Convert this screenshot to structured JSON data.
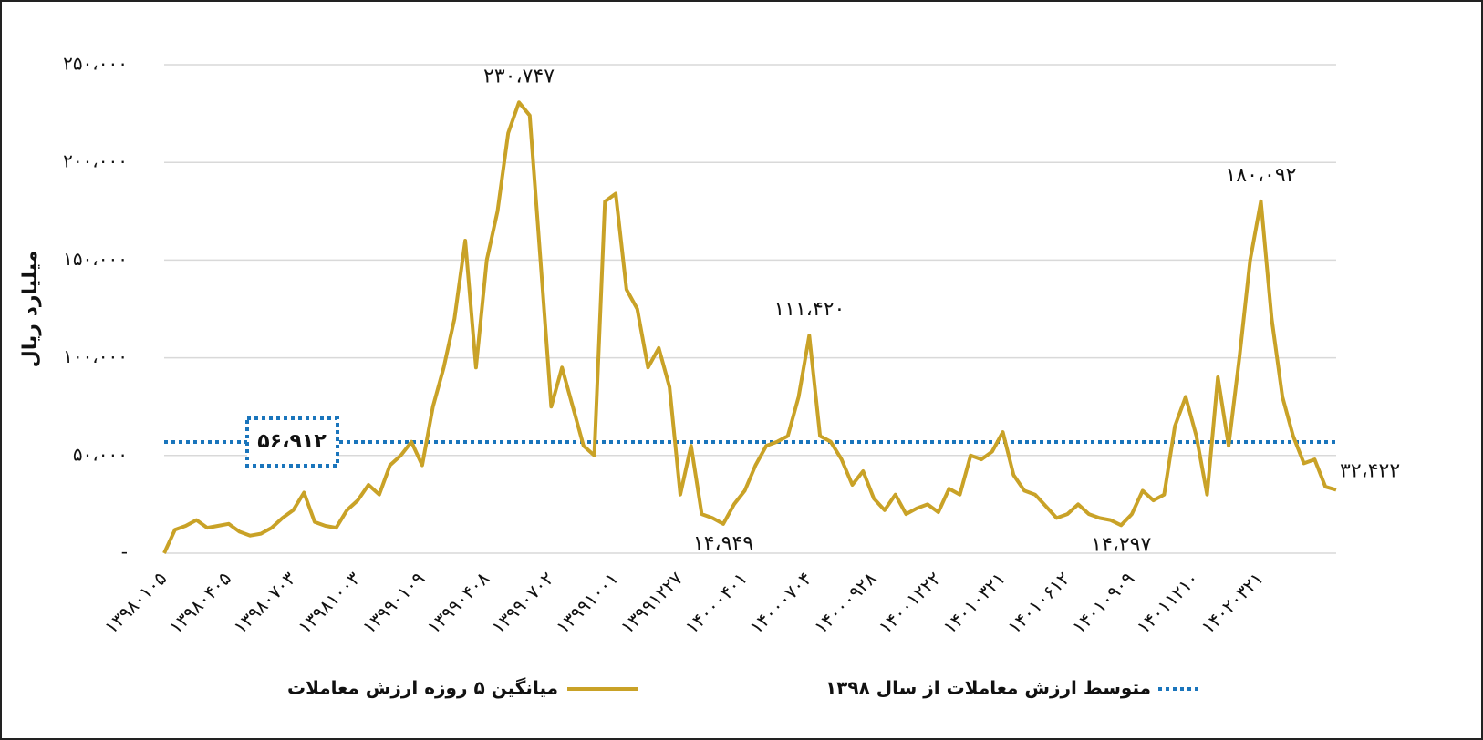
{
  "chart_data": {
    "type": "line",
    "y_label": "میلیارد ریال",
    "categories": [
      "۱۳۹۸۰۱۰۵",
      null,
      null,
      null,
      null,
      null,
      "۱۳۹۸۰۴۰۵",
      null,
      null,
      null,
      null,
      null,
      "۱۳۹۸۰۷۰۳",
      null,
      null,
      null,
      null,
      null,
      "۱۳۹۸۱۰۰۳",
      null,
      null,
      null,
      null,
      null,
      "۱۳۹۹۰۱۰۹",
      null,
      null,
      null,
      null,
      null,
      "۱۳۹۹۰۴۰۸",
      null,
      null,
      null,
      null,
      null,
      "۱۳۹۹۰۷۰۲",
      null,
      null,
      null,
      null,
      null,
      "۱۳۹۹۱۰۰۱",
      null,
      null,
      null,
      null,
      null,
      "۱۳۹۹۱۲۲۷",
      null,
      null,
      null,
      null,
      null,
      "۱۴۰۰۰۴۰۱",
      null,
      null,
      null,
      null,
      null,
      "۱۴۰۰۰۷۰۴",
      null,
      null,
      null,
      null,
      null,
      "۱۴۰۰۰۹۲۸",
      null,
      null,
      null,
      null,
      null,
      "۱۴۰۰۱۲۲۲",
      null,
      null,
      null,
      null,
      null,
      "۱۴۰۱۰۳۲۱",
      null,
      null,
      null,
      null,
      null,
      "۱۴۰۱۰۶۱۲",
      null,
      null,
      null,
      null,
      null,
      "۱۴۰۱۰۹۰۹",
      null,
      null,
      null,
      null,
      null,
      "۱۴۰۱۱۲۱۰",
      null,
      null,
      null,
      null,
      null,
      "۱۴۰۲۰۳۲۱",
      null,
      null,
      null,
      null,
      null,
      null,
      null
    ],
    "series": [
      {
        "name": "میانگین ۵ روزه ارزش معاملات",
        "color": "#c9a227",
        "values": [
          0,
          12000,
          14000,
          17000,
          13000,
          14000,
          15000,
          11000,
          9000,
          10000,
          13000,
          18000,
          22000,
          31000,
          16000,
          14000,
          13000,
          22000,
          27000,
          35000,
          30000,
          45000,
          50000,
          57000,
          45000,
          75000,
          95000,
          120000,
          160000,
          95000,
          150000,
          175000,
          215000,
          230747,
          224000,
          150000,
          75000,
          95000,
          75000,
          55000,
          50000,
          180000,
          184000,
          135000,
          125000,
          95000,
          105000,
          85000,
          30000,
          55000,
          20000,
          18000,
          14949,
          25000,
          32000,
          45000,
          55000,
          57000,
          60000,
          80000,
          111420,
          60000,
          57000,
          48000,
          35000,
          42000,
          28000,
          22000,
          30000,
          20000,
          23000,
          25000,
          21000,
          33000,
          30000,
          50000,
          48000,
          52000,
          62000,
          40000,
          32000,
          30000,
          24000,
          18000,
          20000,
          25000,
          20000,
          18000,
          17000,
          14297,
          20000,
          32000,
          27000,
          30000,
          65000,
          80000,
          60000,
          30000,
          90000,
          55000,
          100000,
          150000,
          180092,
          120000,
          80000,
          60000,
          46000,
          48000,
          34000,
          32422
        ],
        "value_labels": [
          null,
          null,
          null,
          null,
          null,
          null,
          null,
          null,
          null,
          null,
          null,
          null,
          null,
          null,
          null,
          null,
          null,
          null,
          null,
          null,
          null,
          null,
          null,
          null,
          null,
          null,
          null,
          null,
          null,
          null,
          null,
          null,
          null,
          "۲۳۰،۷۴۷",
          null,
          null,
          null,
          null,
          null,
          null,
          null,
          null,
          null,
          null,
          null,
          null,
          null,
          null,
          null,
          null,
          null,
          null,
          "۱۴،۹۴۹",
          null,
          null,
          null,
          null,
          null,
          null,
          null,
          "۱۱۱،۴۲۰",
          null,
          null,
          null,
          null,
          null,
          null,
          null,
          null,
          null,
          null,
          null,
          null,
          null,
          null,
          null,
          null,
          null,
          null,
          null,
          null,
          null,
          null,
          null,
          null,
          null,
          null,
          null,
          null,
          "۱۴،۲۹۷",
          null,
          null,
          null,
          null,
          null,
          null,
          null,
          null,
          null,
          null,
          null,
          null,
          "۱۸۰،۰۹۲",
          null,
          null,
          null,
          null,
          null,
          null,
          "۳۲،۴۲۲"
        ]
      }
    ],
    "reference_line": {
      "name": "متوسط ارزش معاملات از سال ۱۳۹۸",
      "value": 56912,
      "label": "۵۶،۹۱۲",
      "color": "#1a75bc"
    },
    "ylim": [
      0,
      250000
    ],
    "yticks": [
      {
        "value": 0,
        "label": "-"
      },
      {
        "value": 50000,
        "label": "۵۰،۰۰۰"
      },
      {
        "value": 100000,
        "label": "۱۰۰،۰۰۰"
      },
      {
        "value": 150000,
        "label": "۱۵۰،۰۰۰"
      },
      {
        "value": 200000,
        "label": "۲۰۰،۰۰۰"
      },
      {
        "value": 250000,
        "label": "۲۵۰،۰۰۰"
      }
    ],
    "grid": true,
    "legend": "bottom"
  }
}
